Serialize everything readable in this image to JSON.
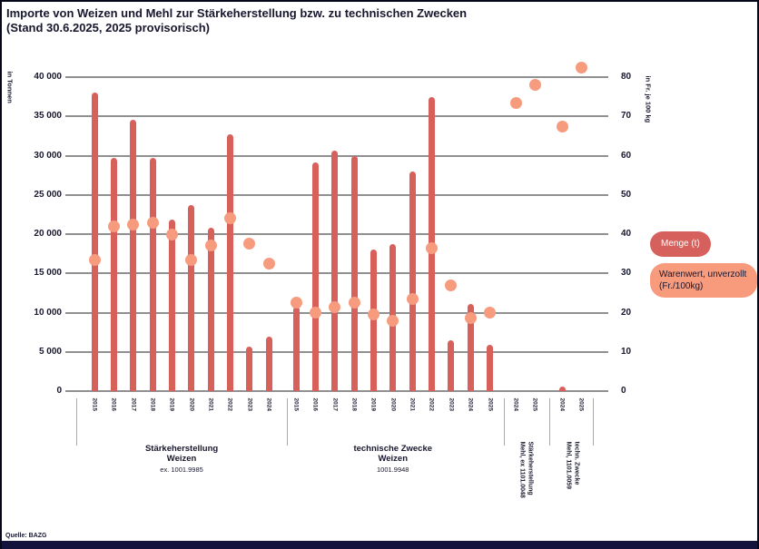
{
  "title": {
    "line1": "Importe von Weizen und Mehl zur Stärkeherstellung bzw. zu technischen Zwecken",
    "line2": "(Stand 30.6.2025, 2025 provisorisch)"
  },
  "source": "Quelle: BAZG",
  "legend": {
    "menge": "Menge (t)",
    "wert_line1": "Warenwert, unverzollt",
    "wert_line2": "(Fr./100kg)"
  },
  "colors": {
    "bar": "#d7605b",
    "dot": "#f79b7e",
    "grid": "#909090",
    "text": "#17172e",
    "footer": "#12123c"
  },
  "chart_data": {
    "type": "bar",
    "subtype": "dual-axis bar + point chart",
    "title": "Importe von Weizen und Mehl zur Stärkeherstellung bzw. zu technischen Zwecken (Stand 30.6.2025, 2025 provisorisch)",
    "grid": true,
    "legend_position": "right",
    "left_axis": {
      "title": "in Tonnen",
      "min": 0,
      "max": 40000,
      "tick_step": 5000,
      "tick_labels": [
        "0",
        "5 000",
        "10 000",
        "15 000",
        "20 000",
        "25 000",
        "30 000",
        "35 000",
        "40 000"
      ]
    },
    "right_axis": {
      "title": "in Fr. je 100 kg",
      "min": 0,
      "max": 80,
      "tick_step": 10,
      "tick_labels": [
        "0",
        "10",
        "20",
        "30",
        "40",
        "50",
        "60",
        "70",
        "80"
      ]
    },
    "series": [
      {
        "name": "Menge (t)",
        "axis": "left",
        "mark": "bar"
      },
      {
        "name": "Warenwert, unverzollt (Fr./100kg)",
        "axis": "right",
        "mark": "point"
      }
    ],
    "groups": [
      {
        "caption_lines": [
          "Stärkeherstellung",
          "Weizen",
          "ex. 1001.9985"
        ],
        "years": [
          "2015",
          "2016",
          "2017",
          "2018",
          "2019",
          "2020",
          "2021",
          "2022",
          "2023",
          "2024"
        ],
        "menge": [
          38000,
          29700,
          34600,
          29700,
          21800,
          23700,
          20800,
          32700,
          5700,
          6900
        ],
        "wert": [
          33.5,
          42,
          42.5,
          43,
          40,
          33.5,
          37,
          44,
          37.5,
          32.5
        ]
      },
      {
        "caption_lines": [
          "technische Zwecke",
          "Weizen",
          "1001.9948"
        ],
        "years": [
          "2015",
          "2016",
          "2017",
          "2018",
          "2019",
          "2020",
          "2021",
          "2022",
          "2023",
          "2024",
          "2025"
        ],
        "menge": [
          10700,
          29100,
          30600,
          30000,
          18000,
          18700,
          28000,
          37400,
          6500,
          11100,
          5900
        ],
        "wert": [
          22.5,
          20,
          21.5,
          22.5,
          19.5,
          18,
          23.5,
          36.5,
          27,
          18.5,
          20
        ]
      },
      {
        "rotated_label_lines": [
          "Stärkeherstellung",
          "Mehl, ex 1101.0048"
        ],
        "years": [
          "2024",
          "2025"
        ],
        "menge": [
          0,
          0
        ],
        "wert": [
          73.5,
          78
        ]
      },
      {
        "rotated_label_lines": [
          "techn. Zwecke",
          "Mehl, 1101.0059"
        ],
        "years": [
          "2024",
          "2025"
        ],
        "menge": [
          600,
          0
        ],
        "wert": [
          67.5,
          82.5
        ]
      }
    ]
  }
}
